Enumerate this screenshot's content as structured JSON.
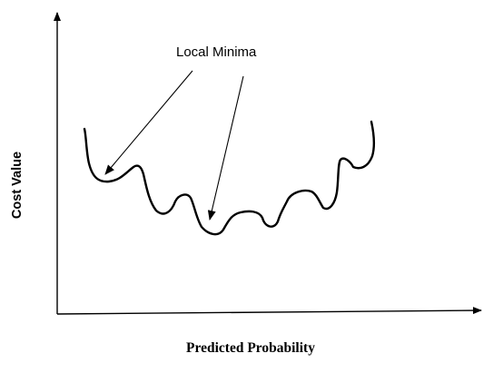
{
  "diagram": {
    "annotation": "Local Minima",
    "x_axis_label": "Predicted Probability",
    "y_axis_label": "Cost Value"
  }
}
